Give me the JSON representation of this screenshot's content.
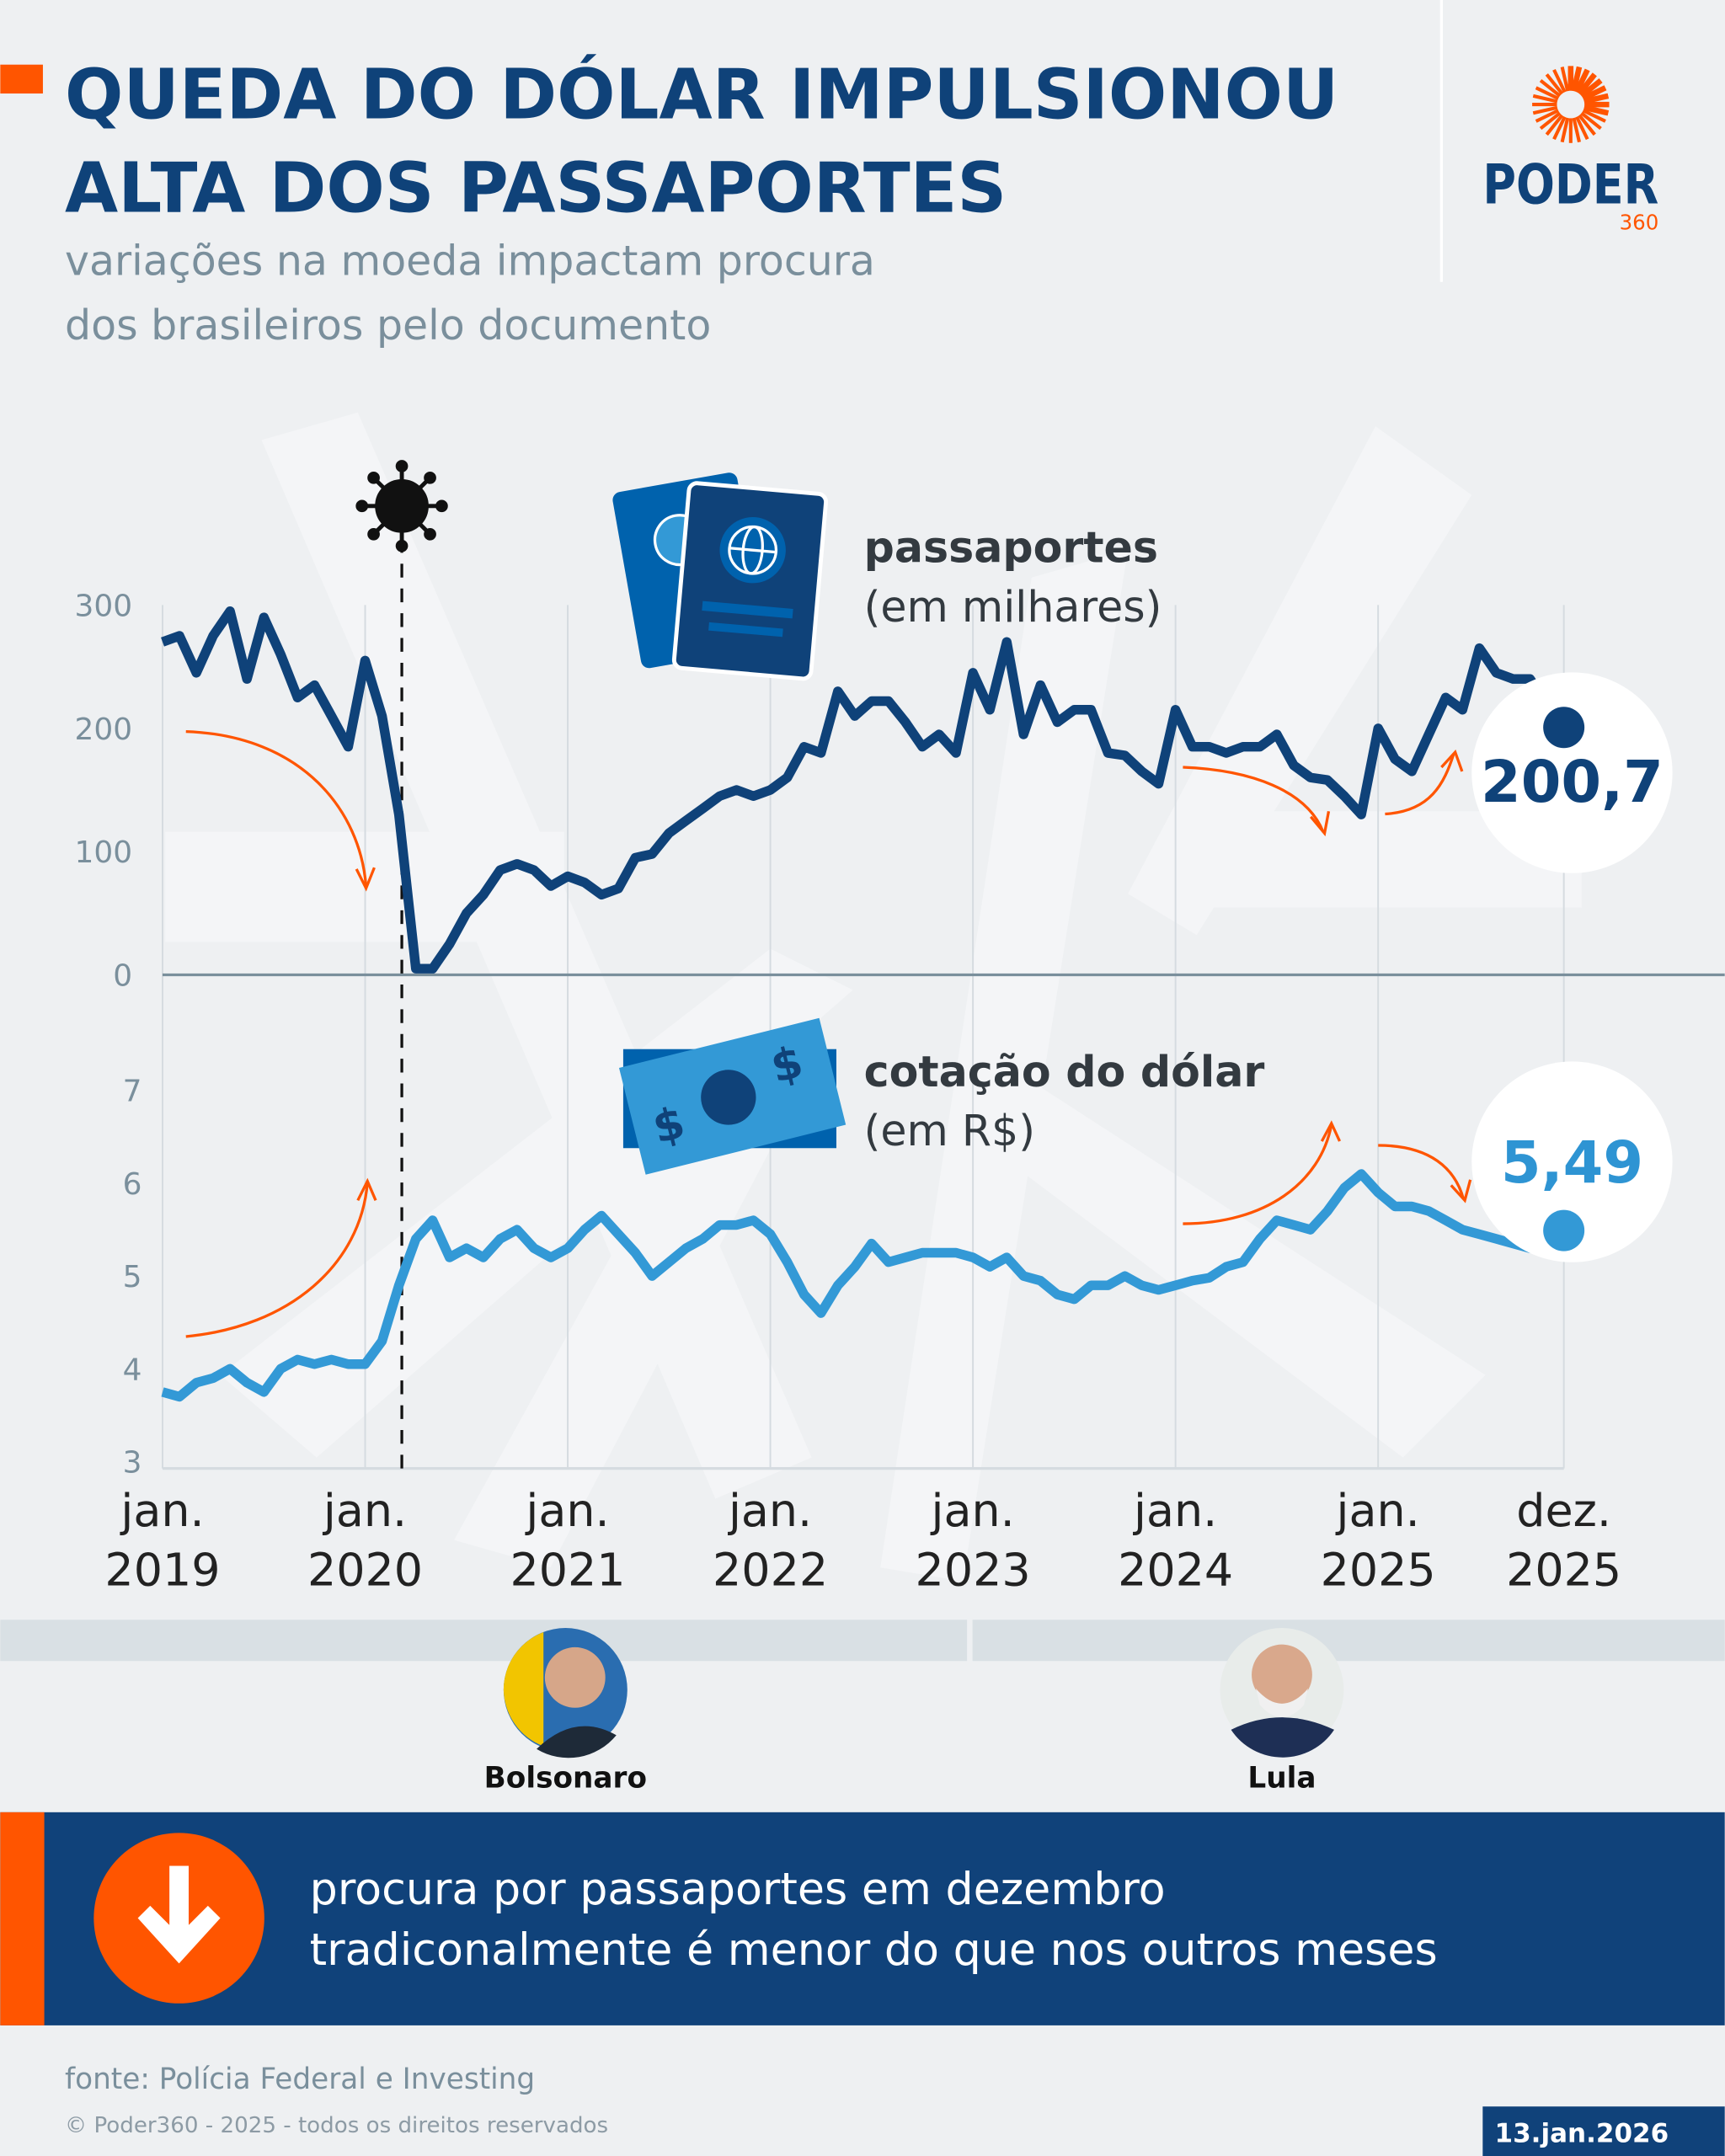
{
  "header": {
    "title_line1": "QUEDA DO DÓLAR IMPULSIONOU",
    "title_line2": "ALTA DOS PASSAPORTES",
    "subtitle_line1": "variações na moeda impactam procura",
    "subtitle_line2": "dos brasileiros pelo documento",
    "logo_text": "PODER",
    "logo_sub": "360"
  },
  "colors": {
    "navy": "#0f4279",
    "light_blue": "#3399d6",
    "orange": "#ff5500",
    "background": "#eef0f2",
    "grey_text": "#7a8f9c"
  },
  "chart_data": [
    {
      "type": "line",
      "title": "passaportes",
      "unit_label": "(em milhares)",
      "icon": "passport-icon",
      "x_start": "2019-01",
      "x_end": "2025-12",
      "x_frequency": "monthly",
      "ylim": [
        0,
        300
      ],
      "yticks": [
        "0",
        "100",
        "200",
        "300"
      ],
      "end_label": "200,7",
      "color": "#0f4279",
      "values": [
        270,
        275,
        245,
        275,
        295,
        240,
        290,
        260,
        225,
        235,
        210,
        185,
        255,
        210,
        130,
        5,
        5,
        25,
        50,
        65,
        85,
        90,
        85,
        72,
        80,
        75,
        65,
        70,
        95,
        98,
        115,
        125,
        135,
        145,
        150,
        145,
        150,
        160,
        185,
        180,
        230,
        210,
        222,
        222,
        205,
        185,
        195,
        180,
        245,
        215,
        270,
        195,
        235,
        205,
        215,
        215,
        180,
        178,
        165,
        155,
        215,
        185,
        185,
        180,
        185,
        185,
        195,
        170,
        160,
        158,
        145,
        130,
        200,
        175,
        165,
        195,
        225,
        215,
        265,
        245,
        240,
        240,
        220,
        200.7
      ]
    },
    {
      "type": "line",
      "title": "cotação do dólar",
      "unit_label": "(em R$)",
      "icon": "banknote-icon",
      "x_start": "2019-01",
      "x_end": "2025-12",
      "x_frequency": "monthly",
      "ylim": [
        3,
        7
      ],
      "yticks": [
        "3",
        "4",
        "5",
        "6",
        "7"
      ],
      "end_label": "5,49",
      "color": "#3399d6",
      "values": [
        3.75,
        3.7,
        3.85,
        3.9,
        4.0,
        3.85,
        3.75,
        4.0,
        4.1,
        4.05,
        4.1,
        4.05,
        4.05,
        4.3,
        4.9,
        5.4,
        5.6,
        5.2,
        5.3,
        5.2,
        5.4,
        5.5,
        5.3,
        5.2,
        5.3,
        5.5,
        5.65,
        5.45,
        5.25,
        5.0,
        5.15,
        5.3,
        5.4,
        5.55,
        5.55,
        5.6,
        5.45,
        5.15,
        4.8,
        4.6,
        4.9,
        5.1,
        5.35,
        5.15,
        5.2,
        5.25,
        5.25,
        5.25,
        5.2,
        5.1,
        5.2,
        5.0,
        4.95,
        4.8,
        4.75,
        4.9,
        4.9,
        5.0,
        4.9,
        4.85,
        4.9,
        4.95,
        4.98,
        5.1,
        5.15,
        5.4,
        5.6,
        5.55,
        5.5,
        5.7,
        5.95,
        6.1,
        5.9,
        5.75,
        5.75,
        5.7,
        5.6,
        5.5,
        5.45,
        5.4,
        5.35,
        5.3,
        5.35,
        5.49
      ]
    }
  ],
  "x_axis": {
    "ticks": [
      {
        "line1": "jan.",
        "line2": "2019",
        "month_index": 0
      },
      {
        "line1": "jan.",
        "line2": "2020",
        "month_index": 12
      },
      {
        "line1": "jan.",
        "line2": "2021",
        "month_index": 24
      },
      {
        "line1": "jan.",
        "line2": "2022",
        "month_index": 36
      },
      {
        "line1": "jan.",
        "line2": "2023",
        "month_index": 48
      },
      {
        "line1": "jan.",
        "line2": "2024",
        "month_index": 60
      },
      {
        "line1": "jan.",
        "line2": "2025",
        "month_index": 72
      },
      {
        "line1": "dez.",
        "line2": "2025",
        "month_index": 83
      }
    ]
  },
  "annotations": {
    "covid_marker": {
      "icon": "virus-icon",
      "month": "2020-03"
    }
  },
  "presidents": [
    {
      "name": "Bolsonaro",
      "period": "2019-2022"
    },
    {
      "name": "Lula",
      "period": "2023-2025"
    }
  ],
  "callout": {
    "icon": "arrow-down-icon",
    "line1": "procura por passaportes em dezembro",
    "line2": "tradiconalmente é menor do que nos outros meses"
  },
  "footer": {
    "source": "fonte: Polícia Federal e Investing",
    "copyright": "© Poder360 - 2025 - todos os direitos reservados",
    "date": "13.jan.2026"
  }
}
